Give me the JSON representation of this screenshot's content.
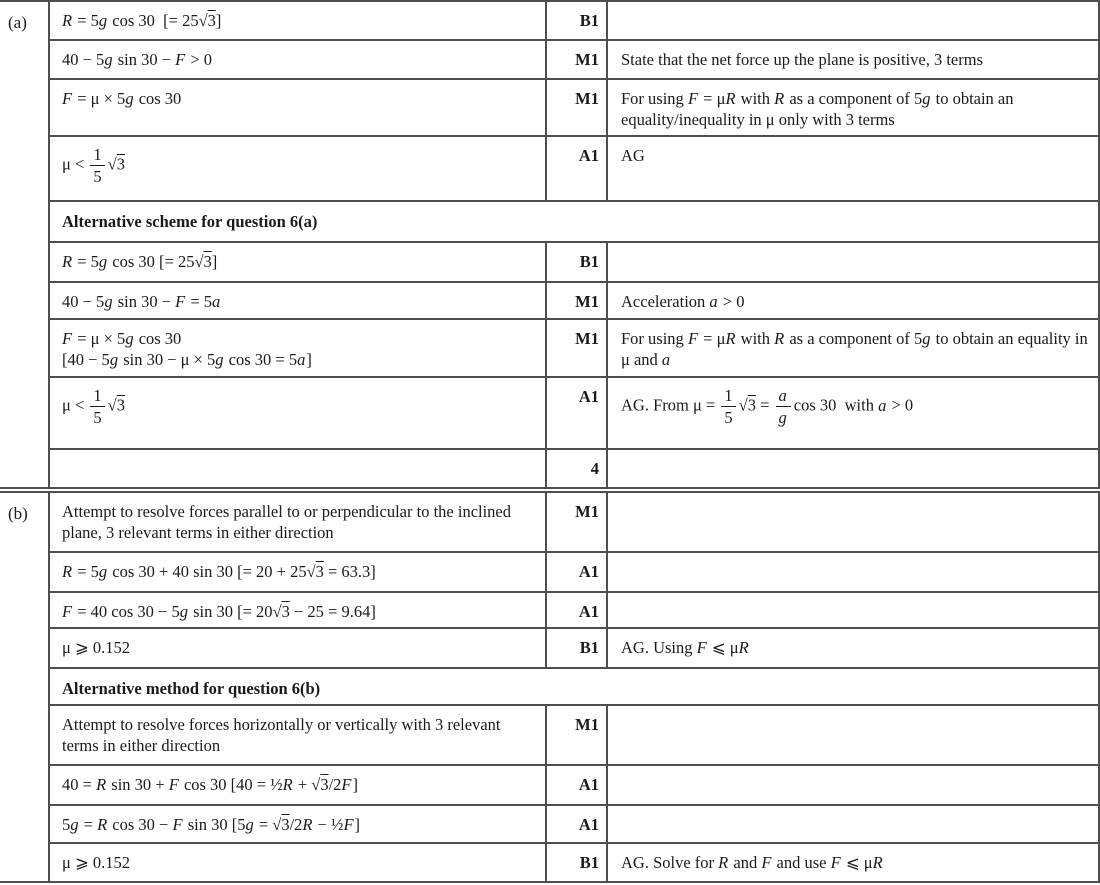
{
  "colors": {
    "border": "#4e4e4e",
    "text": "#1a1a1a",
    "background": "#ffffff"
  },
  "sections": [
    {
      "part": "(a)",
      "rows": [
        {
          "work": "<i>R</i> = 5<i>g</i> cos 30&nbsp; [= 25√<span class='ov'>3</span>]",
          "mark": "B1",
          "comment": ""
        },
        {
          "work": "40 − 5<i>g</i> sin 30 − <i>F</i> &gt; 0",
          "mark": "M1",
          "comment": "State that the net force up the plane is positive, 3 terms"
        },
        {
          "work": "<i>F</i> = μ × 5<i>g</i> cos 30",
          "mark": "M1",
          "comment": "For using <i>F</i> = μ<i>R</i> with <i>R</i> as a component of 5<i>g</i> to obtain an equality/inequality in μ only with 3 terms"
        },
        {
          "work": "μ &lt; <span class='vfrac'><span class='num'>1</span><span class='den'>5</span></span>√<span class='ov'>3</span>",
          "mark": "A1",
          "comment": "AG"
        },
        {
          "header": "Alternative scheme for question 6(a)"
        },
        {
          "work": "<i>R</i> = 5<i>g</i> cos 30 [= 25√<span class='ov'>3</span>]",
          "mark": "B1",
          "comment": ""
        },
        {
          "work": "40 − 5<i>g</i> sin 30 − <i>F</i> = 5<i>a</i>",
          "mark": "M1",
          "comment": "Acceleration <i>a</i> &gt; 0"
        },
        {
          "work": "<i>F</i> = μ × 5<i>g</i> cos 30<br>[40 − 5<i>g</i> sin 30 − μ × 5<i>g</i> cos 30 = 5<i>a</i>]",
          "mark": "M1",
          "comment": "For using <i>F</i> = μ<i>R</i> with <i>R</i> as a component of 5<i>g</i> to obtain an equality in μ and <i>a</i>"
        },
        {
          "work": "μ &lt; <span class='vfrac'><span class='num'>1</span><span class='den'>5</span></span>√<span class='ov'>3</span>",
          "mark": "A1",
          "comment": "AG. From μ = <span class='vfrac'><span class='num'>1</span><span class='den'>5</span></span>√<span class='ov'>3</span> = <span class='vfrac'><span class='num'><i>a</i></span><span class='den'><i>g</i></span></span>cos 30&nbsp; with <i>a</i> &gt; 0"
        },
        {
          "work": "",
          "mark": "4",
          "comment": ""
        }
      ]
    },
    {
      "part": "(b)",
      "rows": [
        {
          "work": "Attempt to resolve forces parallel to or perpendicular to the inclined plane, 3 relevant terms in either direction",
          "mark": "M1",
          "comment": ""
        },
        {
          "work": "<i>R</i> = 5<i>g</i> cos 30 + 40 sin 30 [= 20 + 25√<span class='ov'>3</span> = 63.3]",
          "mark": "A1",
          "comment": ""
        },
        {
          "work": "<i>F</i> = 40 cos 30 − 5<i>g</i> sin 30 [= 20√<span class='ov'>3</span> − 25 = 9.64]",
          "mark": "A1",
          "comment": ""
        },
        {
          "work": "μ ⩾ 0.152",
          "mark": "B1",
          "comment": "AG. Using <i>F</i> ⩽ μ<i>R</i>"
        },
        {
          "header": "Alternative method for question 6(b)"
        },
        {
          "work": "Attempt to resolve forces horizontally or vertically with 3 relevant terms in either direction",
          "mark": "M1",
          "comment": ""
        },
        {
          "work": "40 = <i>R</i> sin 30 + <i>F</i> cos 30 [40 = ½<i>R</i> + √<span class='ov'>3</span>/2<i>F</i>]",
          "mark": "A1",
          "comment": ""
        },
        {
          "work": "5<i>g</i> = <i>R</i> cos 30 − <i>F</i> sin 30 [5<i>g</i> = √<span class='ov'>3</span>/2<i>R</i> − ½<i>F</i>]",
          "mark": "A1",
          "comment": ""
        },
        {
          "work": "μ ⩾ 0.152",
          "mark": "B1",
          "comment": "AG. Solve for <i>R</i> and <i>F</i> and use <i>F</i> ⩽ μ<i>R</i>"
        }
      ]
    }
  ]
}
